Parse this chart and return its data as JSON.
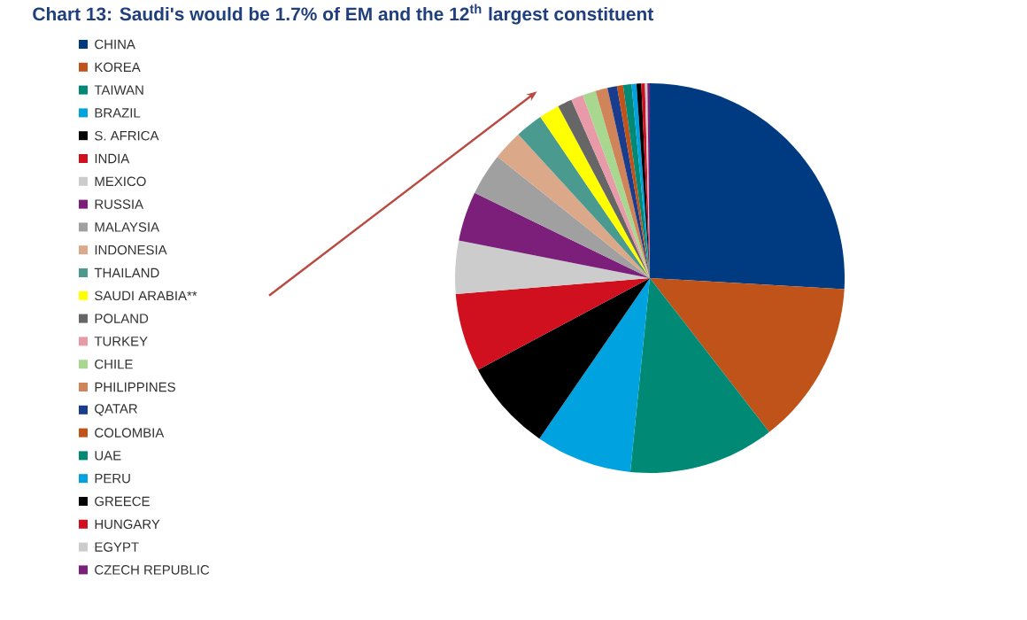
{
  "chart_data": {
    "type": "pie",
    "title": "Chart 13: Saudi's would be 1.7% of EM and the 12$^{th}$ largest constituent",
    "legend": "left",
    "categories": [
      "CHINA",
      "KOREA",
      "TAIWAN",
      "BRAZIL",
      "S. AFRICA",
      "INDIA",
      "MEXICO",
      "RUSSIA",
      "MALAYSIA",
      "INDONESIA",
      "THAILAND",
      "SAUDI ARABIA**",
      "POLAND",
      "TURKEY",
      "CHILE",
      "PHILIPPINES",
      "QATAR",
      "COLOMBIA",
      "UAE",
      "PERU",
      "GREECE",
      "HUNGARY",
      "EGYPT",
      "CZECH REPUBLIC"
    ],
    "values": [
      25.9,
      13.6,
      12.1,
      8.0,
      7.6,
      6.5,
      4.4,
      4.1,
      3.5,
      2.5,
      2.3,
      1.7,
      1.2,
      1.0,
      1.1,
      1.0,
      0.8,
      0.5,
      0.7,
      0.4,
      0.4,
      0.3,
      0.2,
      0.2
    ],
    "colors": [
      "#003a80",
      "#c0531a",
      "#008a76",
      "#00a3e0",
      "#000000",
      "#d0101e",
      "#cccccc",
      "#7b1f7b",
      "#a0a0a0",
      "#dba88a",
      "#4a9a90",
      "#ffff00",
      "#666666",
      "#e89aa8",
      "#a8d890",
      "#d0845a",
      "#1a3c8c",
      "#c0531a",
      "#008a76",
      "#00a3e0",
      "#000000",
      "#d0101e",
      "#cccccc",
      "#7b1f7b"
    ]
  }
}
